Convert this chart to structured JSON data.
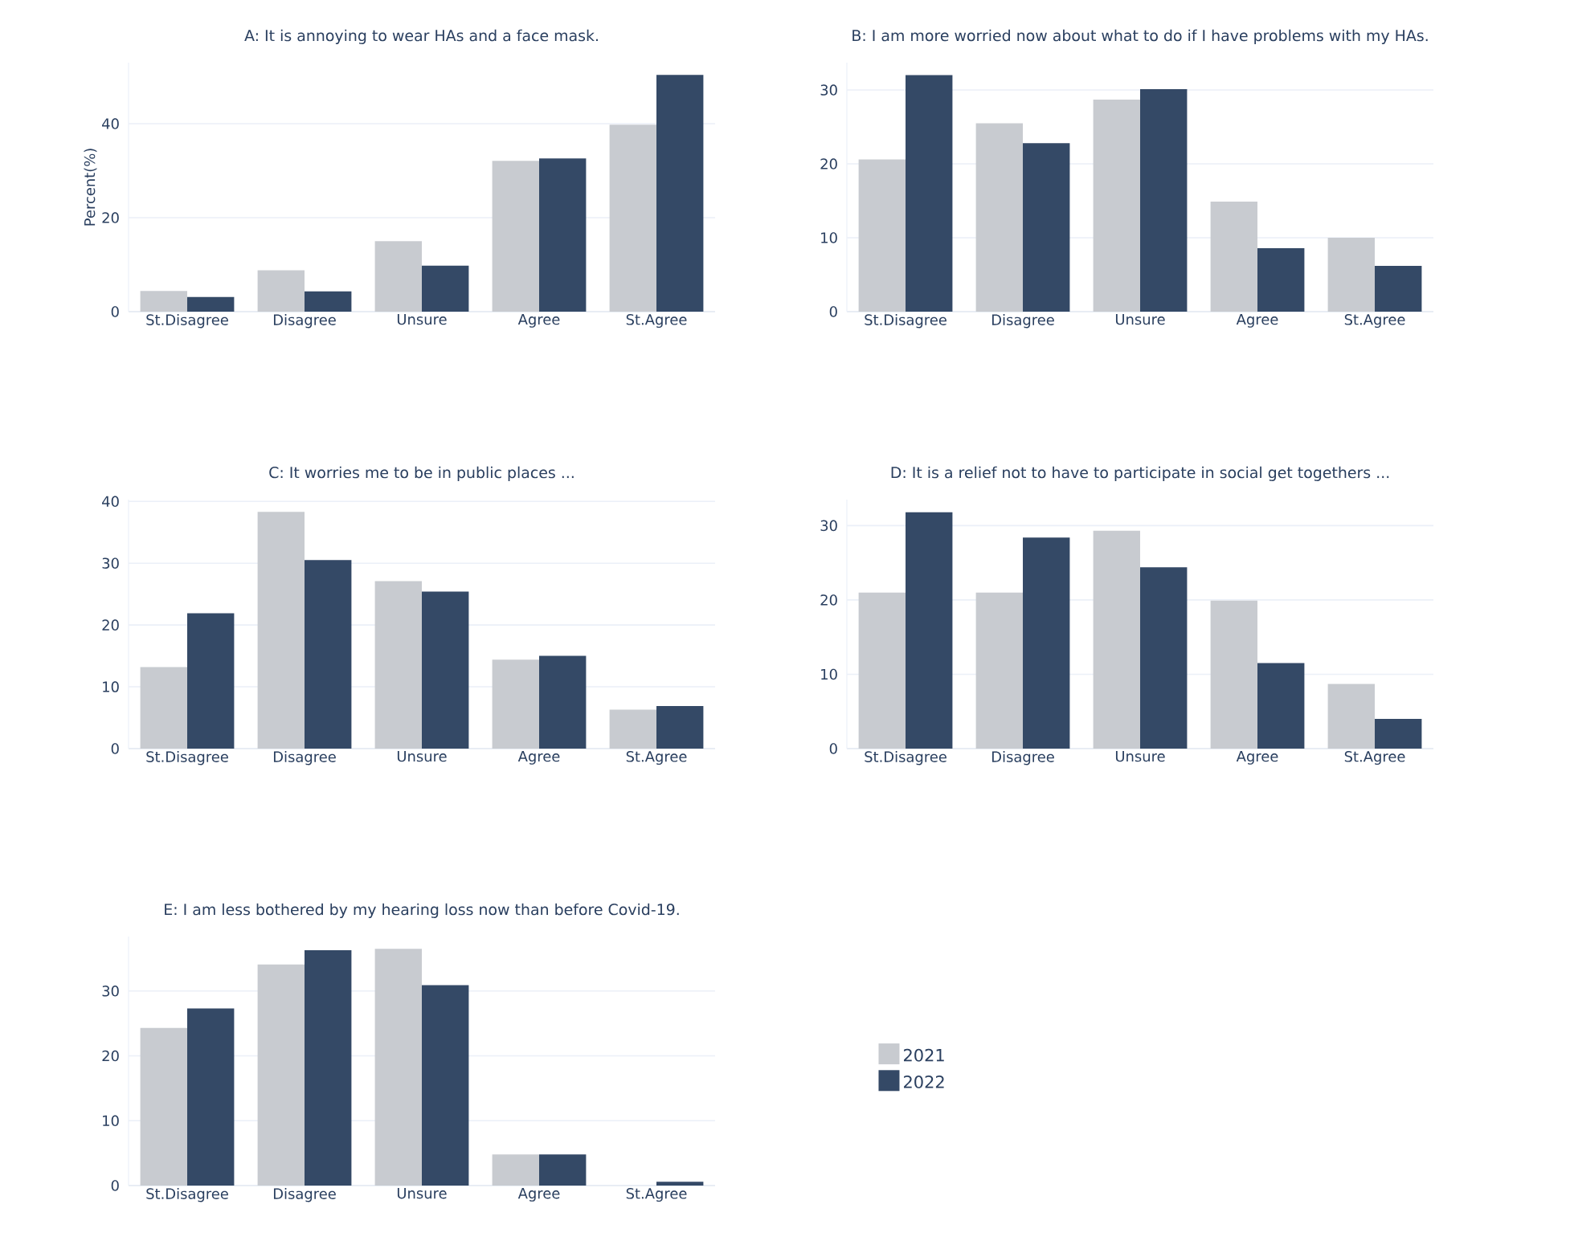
{
  "chart_data": [
    {
      "type": "bar",
      "title": "A: It is annoying to wear HAs and a face mask.",
      "ylabel": "Percent(%)",
      "categories": [
        "St.Disagree",
        "Disagree",
        "Unsure",
        "Agree",
        "St.Agree"
      ],
      "ylim": [
        0,
        53
      ],
      "yticks": [
        0,
        20,
        40
      ],
      "grid": "y",
      "series": [
        {
          "color": "#c8cbd0",
          "values": [
            4.4,
            8.8,
            15.0,
            32.1,
            39.8
          ]
        },
        {
          "color": "#344966",
          "values": [
            3.1,
            4.3,
            9.8,
            32.6,
            50.4
          ]
        }
      ]
    },
    {
      "type": "bar",
      "title": "B: I am more worried now about what to do if I have problems with my HAs.",
      "categories": [
        "St.Disagree",
        "Disagree",
        "Unsure",
        "Agree",
        "St.Agree"
      ],
      "ylim": [
        0,
        33.7
      ],
      "yticks": [
        0,
        10,
        20,
        30
      ],
      "grid": "y",
      "series": [
        {
          "color": "#c8cbd0",
          "values": [
            20.6,
            25.5,
            28.7,
            14.9,
            10.0
          ]
        },
        {
          "color": "#344966",
          "values": [
            32.0,
            22.8,
            30.1,
            8.6,
            6.2
          ]
        }
      ]
    },
    {
      "type": "bar",
      "title": "C: It worries me to be in public places ...",
      "categories": [
        "St.Disagree",
        "Disagree",
        "Unsure",
        "Agree",
        "St.Agree"
      ],
      "ylim": [
        0,
        40.3
      ],
      "yticks": [
        0,
        10,
        20,
        30,
        40
      ],
      "grid": "y",
      "series": [
        {
          "color": "#c8cbd0",
          "values": [
            13.2,
            38.3,
            27.1,
            14.4,
            6.3
          ]
        },
        {
          "color": "#344966",
          "values": [
            21.9,
            30.5,
            25.4,
            15.0,
            6.9
          ]
        }
      ]
    },
    {
      "type": "bar",
      "title": "D: It is a relief not to have to participate in social get togethers ...",
      "categories": [
        "St.Disagree",
        "Disagree",
        "Unsure",
        "Agree",
        "St.Agree"
      ],
      "ylim": [
        0,
        33.5
      ],
      "yticks": [
        0,
        10,
        20,
        30
      ],
      "grid": "y",
      "series": [
        {
          "color": "#c8cbd0",
          "values": [
            21.0,
            21.0,
            29.3,
            19.9,
            8.7
          ]
        },
        {
          "color": "#344966",
          "values": [
            31.8,
            28.4,
            24.4,
            11.5,
            4.0
          ]
        }
      ]
    },
    {
      "type": "bar",
      "title": "E: I am less bothered by my hearing loss now than before Covid-19.",
      "categories": [
        "St.Disagree",
        "Disagree",
        "Unsure",
        "Agree",
        "St.Agree"
      ],
      "ylim": [
        0,
        38.4
      ],
      "yticks": [
        0,
        10,
        20,
        30
      ],
      "grid": "y",
      "legend": "right",
      "series": [
        {
          "name": "2021",
          "color": "#c8cbd0",
          "values": [
            24.3,
            34.1,
            36.5,
            4.8,
            0
          ]
        },
        {
          "name": "2022",
          "color": "#344966",
          "values": [
            27.3,
            36.3,
            30.9,
            4.8,
            0.6
          ]
        }
      ]
    }
  ]
}
